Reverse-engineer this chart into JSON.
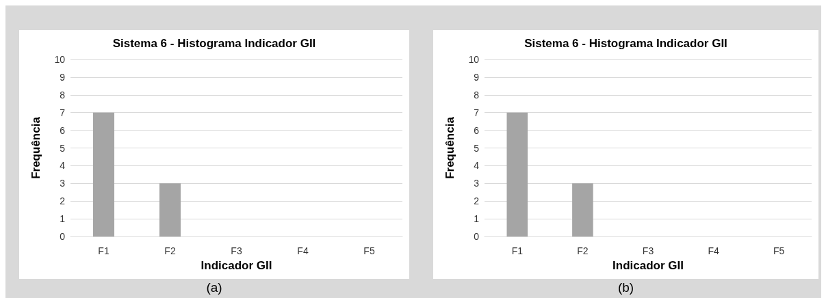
{
  "chart_data": [
    {
      "type": "bar",
      "title": "Sistema 6 - Histograma Indicador GII",
      "xlabel": "Indicador GII",
      "ylabel": "Frequência",
      "categories": [
        "F1",
        "F2",
        "F3",
        "F4",
        "F5"
      ],
      "values": [
        7,
        3,
        0,
        0,
        0
      ],
      "color": "#a5a5a5",
      "ylim": [
        0,
        10
      ],
      "yticks": [
        0,
        1,
        2,
        3,
        4,
        5,
        6,
        7,
        8,
        9,
        10
      ],
      "grid": "y",
      "annotations": [
        "(a)"
      ]
    },
    {
      "type": "bar",
      "title": "Sistema 6 - Histograma Indicador GII",
      "xlabel": "Indicador GII",
      "ylabel": "Frequência",
      "categories": [
        "F1",
        "F2",
        "F3",
        "F4",
        "F5"
      ],
      "values": [
        7,
        3,
        0,
        0,
        0
      ],
      "color": "#a5a5a5",
      "ylim": [
        0,
        10
      ],
      "yticks": [
        0,
        1,
        2,
        3,
        4,
        5,
        6,
        7,
        8,
        9,
        10
      ],
      "grid": "y",
      "annotations": [
        "(b)"
      ]
    }
  ]
}
